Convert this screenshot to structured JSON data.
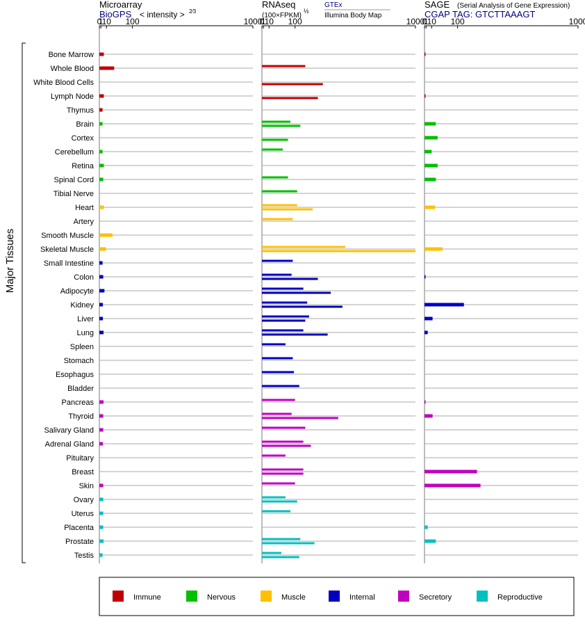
{
  "chart_data": {
    "type": "bar",
    "ylabel": "Major Tissues",
    "tick_labels": [
      "0",
      "1",
      "10",
      "100",
      "1000"
    ],
    "tick_values": [
      0,
      1,
      10,
      100,
      1000
    ],
    "xlim": [
      0,
      1000
    ],
    "tissues": [
      {
        "name": "Bone Marrow",
        "group": "Immune"
      },
      {
        "name": "Whole Blood",
        "group": "Immune"
      },
      {
        "name": "White Blood Cells",
        "group": "Immune"
      },
      {
        "name": "Lymph Node",
        "group": "Immune"
      },
      {
        "name": "Thymus",
        "group": "Immune"
      },
      {
        "name": "Brain",
        "group": "Nervous"
      },
      {
        "name": "Cortex",
        "group": "Nervous"
      },
      {
        "name": "Cerebellum",
        "group": "Nervous"
      },
      {
        "name": "Retina",
        "group": "Nervous"
      },
      {
        "name": "Spinal Cord",
        "group": "Nervous"
      },
      {
        "name": "Tibial Nerve",
        "group": "Nervous"
      },
      {
        "name": "Heart",
        "group": "Muscle"
      },
      {
        "name": "Artery",
        "group": "Muscle"
      },
      {
        "name": "Smooth Muscle",
        "group": "Muscle"
      },
      {
        "name": "Skeletal Muscle",
        "group": "Muscle"
      },
      {
        "name": "Small Intestine",
        "group": "Internal"
      },
      {
        "name": "Colon",
        "group": "Internal"
      },
      {
        "name": "Adipocyte",
        "group": "Internal"
      },
      {
        "name": "Kidney",
        "group": "Internal"
      },
      {
        "name": "Liver",
        "group": "Internal"
      },
      {
        "name": "Lung",
        "group": "Internal"
      },
      {
        "name": "Spleen",
        "group": "Internal"
      },
      {
        "name": "Stomach",
        "group": "Internal"
      },
      {
        "name": "Esophagus",
        "group": "Internal"
      },
      {
        "name": "Bladder",
        "group": "Internal"
      },
      {
        "name": "Pancreas",
        "group": "Secretory"
      },
      {
        "name": "Thyroid",
        "group": "Secretory"
      },
      {
        "name": "Salivary Gland",
        "group": "Secretory"
      },
      {
        "name": "Adrenal Gland",
        "group": "Secretory"
      },
      {
        "name": "Pituitary",
        "group": "Secretory"
      },
      {
        "name": "Breast",
        "group": "Secretory"
      },
      {
        "name": "Skin",
        "group": "Secretory"
      },
      {
        "name": "Ovary",
        "group": "Reproductive"
      },
      {
        "name": "Uterus",
        "group": "Reproductive"
      },
      {
        "name": "Placenta",
        "group": "Reproductive"
      },
      {
        "name": "Prostate",
        "group": "Reproductive"
      },
      {
        "name": "Testis",
        "group": "Reproductive"
      }
    ],
    "groups": [
      {
        "name": "Immune",
        "color": "#c00000"
      },
      {
        "name": "Nervous",
        "color": "#00c000"
      },
      {
        "name": "Muscle",
        "color": "#ffc000"
      },
      {
        "name": "Internal",
        "color": "#0000c0"
      },
      {
        "name": "Secretory",
        "color": "#c000c0"
      },
      {
        "name": "Reproductive",
        "color": "#00c0c0"
      }
    ],
    "panels": [
      {
        "id": "microarray",
        "title": "Microarray",
        "source": "BioGPS",
        "units": "< intensity >",
        "units_exp": "2⁄3",
        "values": [
          5,
          30,
          null,
          5,
          3,
          3,
          null,
          3,
          5,
          4,
          null,
          5,
          null,
          25,
          9,
          3,
          4,
          6,
          3.5,
          3.5,
          4.5,
          null,
          null,
          null,
          null,
          4.5,
          4,
          4,
          3.5,
          null,
          null,
          4,
          4,
          4,
          4,
          4.5,
          3
        ]
      },
      {
        "id": "rnaseq",
        "title": "RNAseq",
        "units": "(100×FPKM)",
        "units_exp": "½",
        "series": [
          {
            "name": "GTEx",
            "values": [
              null,
              150,
              null,
              null,
              null,
              80,
              null,
              50,
              null,
              70,
              110,
              110,
              90,
              null,
              400,
              90,
              85,
              140,
              160,
              170,
              140,
              60,
              90,
              95,
              120,
              100,
              85,
              150,
              140,
              60,
              140,
              100,
              60,
              80,
              null,
              125,
              45
            ]
          },
          {
            "name": "Illumina Body Map",
            "values": [
              null,
              null,
              250,
              220,
              null,
              125,
              70,
              null,
              null,
              null,
              null,
              190,
              null,
              null,
              1000,
              null,
              220,
              300,
              380,
              150,
              280,
              null,
              null,
              null,
              null,
              null,
              350,
              null,
              180,
              null,
              140,
              null,
              110,
              null,
              null,
              200,
              120
            ]
          }
        ]
      },
      {
        "id": "sage",
        "title": "SAGE",
        "subtitle": "(Serial Analysis of Gene Expression)",
        "source": "CGAP TAG: GTCTTAAAGT",
        "values": [
          0.1,
          null,
          null,
          0.1,
          null,
          20,
          25,
          10,
          25,
          20,
          null,
          18,
          null,
          null,
          40,
          null,
          0.1,
          null,
          130,
          12,
          3,
          null,
          null,
          null,
          null,
          0.1,
          12,
          null,
          null,
          null,
          200,
          220,
          null,
          null,
          3,
          20,
          null
        ]
      }
    ],
    "legend": [
      "Immune",
      "Nervous",
      "Muscle",
      "Internal",
      "Secretory",
      "Reproductive"
    ]
  }
}
